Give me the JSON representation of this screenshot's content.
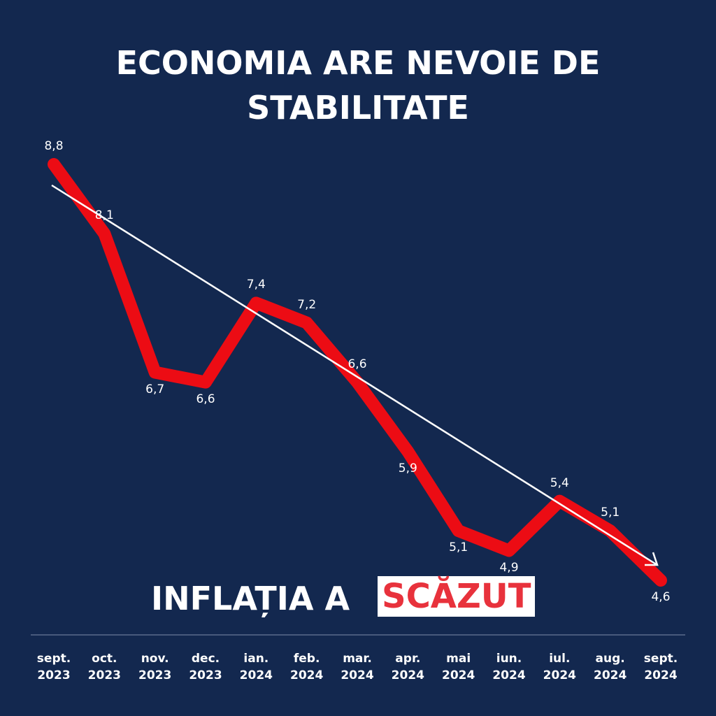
{
  "chart_data": {
    "type": "line",
    "title": "ECONOMIA ARE NEVOIE DE STABILITATE",
    "headline": {
      "text": "INFLAȚIA A",
      "highlight": "SCĂZUT"
    },
    "categories": [
      "sept. 2023",
      "oct. 2023",
      "nov. 2023",
      "dec. 2023",
      "ian. 2024",
      "feb. 2024",
      "mar. 2024",
      "apr. 2024",
      "mai 2024",
      "iun. 2024",
      "iul. 2024",
      "aug. 2024",
      "sept. 2024"
    ],
    "values": [
      8.8,
      8.1,
      6.7,
      6.6,
      7.4,
      7.2,
      6.6,
      5.9,
      5.1,
      4.9,
      5.4,
      5.1,
      4.6
    ],
    "value_labels": [
      "8,8",
      "8,1",
      "6,7",
      "6,6",
      "7,4",
      "7,2",
      "6,6",
      "5,9",
      "5,1",
      "4,9",
      "5,4",
      "5,1",
      "4,6"
    ],
    "color": "#ec0c14"
  }
}
